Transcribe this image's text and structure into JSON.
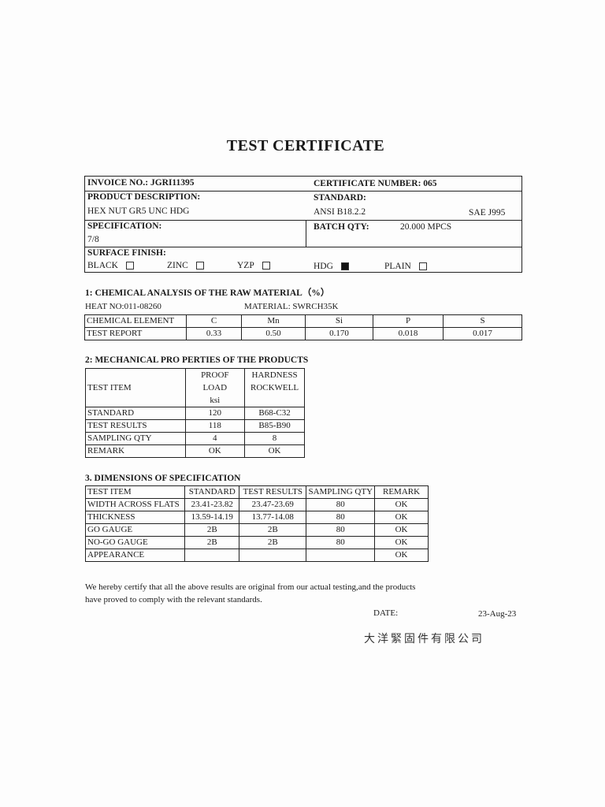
{
  "title": "TEST CERTIFICATE",
  "header": {
    "invoice": "INVOICE NO.: JGRI11395",
    "certificate_number": "CERTIFICATE NUMBER: 065",
    "product_description_label": "PRODUCT DESCRIPTION:",
    "product_description": "HEX NUT GR5 UNC HDG",
    "standard_label": "STANDARD:",
    "standard_1": "ANSI B18.2.2",
    "standard_2": "SAE J995",
    "specification_label": "SPECIFICATION:",
    "specification": "7/8",
    "batch_qty_label": "BATCH QTY:",
    "batch_qty": "20.000  MPCS",
    "surface_finish_label": "SURFACE FINISH:",
    "finishes": [
      {
        "label": "BLACK",
        "checked": false
      },
      {
        "label": "ZINC",
        "checked": false
      },
      {
        "label": "YZP",
        "checked": false
      },
      {
        "label": "HDG",
        "checked": true
      },
      {
        "label": "PLAIN",
        "checked": false
      }
    ]
  },
  "chemical": {
    "heading": "1:  CHEMICAL ANALYSIS OF  THE RAW MATERIAL（%）",
    "heat_no": "HEAT NO:011-08260",
    "material": "MATERIAL: SWRCH35K",
    "rows": [
      [
        "CHEMICAL ELEMENT",
        "C",
        "Mn",
        "Si",
        "P",
        "S"
      ],
      [
        "TEST REPORT",
        "0.33",
        "0.50",
        "0.170",
        "0.018",
        "0.017"
      ]
    ]
  },
  "mechanical": {
    "heading": "2:  MECHANICAL PRO PERTIES OF THE PRODUCTS",
    "header": [
      "TEST ITEM",
      "PROOF",
      "LOAD",
      "ksi",
      "HARDNESS",
      "ROCKWELL"
    ],
    "rows": [
      [
        "STANDARD",
        "120",
        "B68-C32"
      ],
      [
        "TEST RESULTS",
        "118",
        "B85-B90"
      ],
      [
        "SAMPLING QTY",
        "4",
        "8"
      ],
      [
        "REMARK",
        "OK",
        "OK"
      ]
    ]
  },
  "dimensions": {
    "heading": "3.  DIMENSIONS OF SPECIFICATION",
    "rows": [
      [
        "TEST ITEM",
        "STANDARD",
        "TEST RESULTS",
        "SAMPLING QTY",
        "REMARK"
      ],
      [
        "WIDTH ACROSS FLATS",
        "23.41-23.82",
        "23.47-23.69",
        "80",
        "OK"
      ],
      [
        "THICKNESS",
        "13.59-14.19",
        "13.77-14.08",
        "80",
        "OK"
      ],
      [
        "GO GAUGE",
        "2B",
        "2B",
        "80",
        "OK"
      ],
      [
        "NO-GO GAUGE",
        "2B",
        "2B",
        "80",
        "OK"
      ],
      [
        "APPEARANCE",
        "",
        "",
        "",
        "OK"
      ]
    ]
  },
  "certify_line1": "We hereby certify that all the above results are original from our actual testing,and the products",
  "certify_line2": "have proved to comply with the relevant standards.",
  "date_label": "DATE:",
  "date": "23-Aug-23",
  "company_stamp": "大洋緊固件有限公司"
}
